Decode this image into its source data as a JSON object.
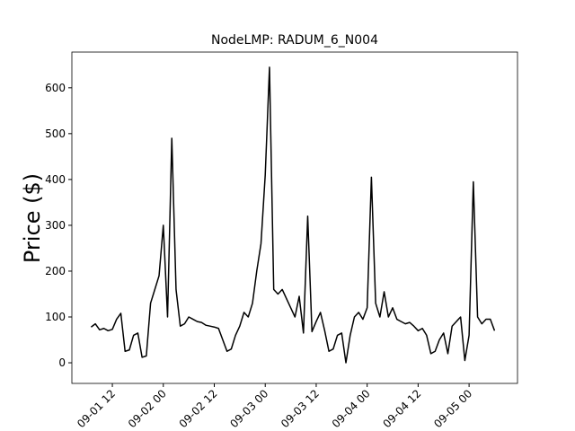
{
  "chart_data": {
    "type": "line",
    "title": "NodeLMP: RADUM_6_N004",
    "y_label": "Price ($)",
    "x": [
      7,
      8,
      9,
      10,
      11,
      12,
      13,
      14,
      15,
      16,
      17,
      18,
      19,
      20,
      21,
      22,
      23,
      24,
      25,
      26,
      27,
      28,
      29,
      30,
      31,
      32,
      33,
      34,
      35,
      36,
      37,
      38,
      39,
      40,
      41,
      42,
      43,
      44,
      45,
      46,
      47,
      48,
      49,
      50,
      51,
      52,
      53,
      54,
      55,
      56,
      57,
      58,
      59,
      60,
      61,
      62,
      63,
      64,
      65,
      66,
      67,
      68,
      69,
      70,
      71,
      72,
      73,
      74,
      75,
      76,
      77,
      78,
      79,
      80,
      81,
      82,
      83,
      84,
      85,
      86,
      87,
      88,
      89,
      90,
      91,
      92,
      93,
      94,
      95,
      96,
      97,
      98,
      99,
      100,
      101,
      102
    ],
    "series": [
      {
        "color": "#000000",
        "values": [
          78,
          85,
          72,
          75,
          70,
          73,
          95,
          108,
          25,
          28,
          60,
          65,
          12,
          15,
          130,
          160,
          190,
          300,
          100,
          490,
          160,
          80,
          85,
          100,
          95,
          90,
          88,
          82,
          80,
          78,
          75,
          50,
          25,
          30,
          60,
          80,
          110,
          100,
          130,
          200,
          260,
          410,
          645,
          160,
          150,
          160,
          140,
          120,
          100,
          145,
          65,
          320,
          68,
          90,
          110,
          70,
          25,
          30,
          60,
          65,
          0,
          60,
          100,
          110,
          95,
          120,
          405,
          130,
          100,
          155,
          100,
          120,
          95,
          90,
          85,
          88,
          80,
          70,
          75,
          60,
          20,
          25,
          50,
          65,
          20,
          80,
          90,
          100,
          5,
          60,
          395,
          100,
          85,
          95,
          95,
          70
        ]
      }
    ],
    "xlim": [
      2.47,
      107.4
    ],
    "xticks": [
      {
        "value": 12,
        "label": "09-01 12"
      },
      {
        "value": 24,
        "label": "09-02 00"
      },
      {
        "value": 36,
        "label": "09-02 12"
      },
      {
        "value": 48,
        "label": "09-03 00"
      },
      {
        "value": 60,
        "label": "09-03 12"
      },
      {
        "value": 72,
        "label": "09-04 00"
      },
      {
        "value": 84,
        "label": "09-04 12"
      },
      {
        "value": 96,
        "label": "09-05 00"
      }
    ],
    "ylim": [
      -45,
      678
    ],
    "yticks": [
      0,
      100,
      200,
      300,
      400,
      500,
      600
    ]
  }
}
